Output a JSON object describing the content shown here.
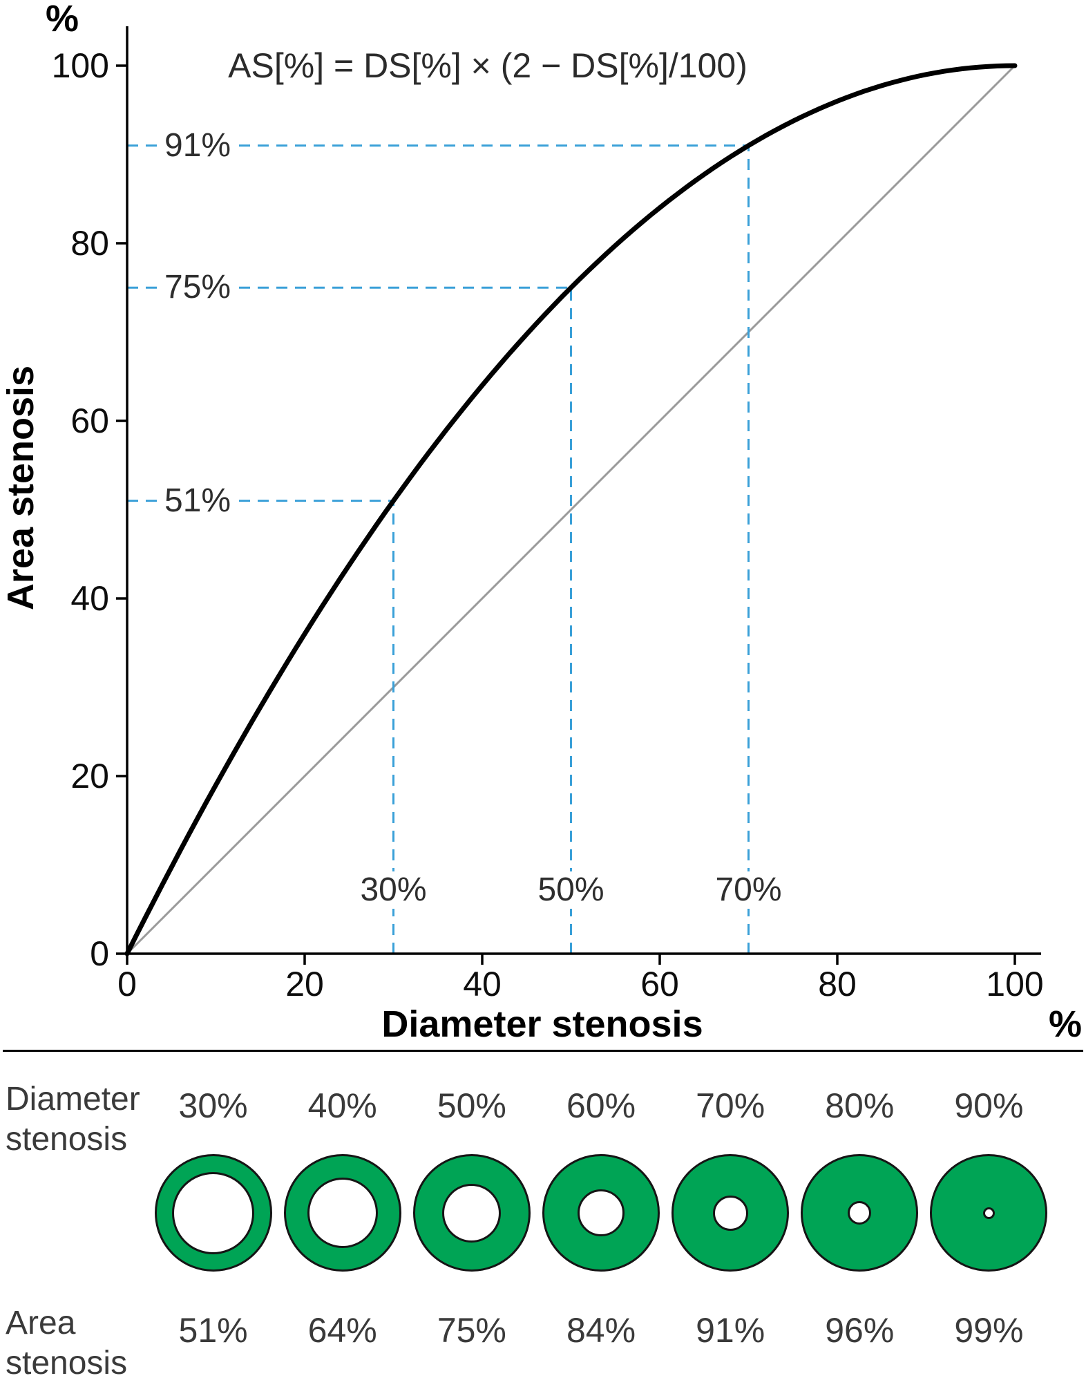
{
  "chart_data": {
    "type": "line",
    "title": "",
    "formula": "AS[%] = DS[%] × (2 − DS[%]/100)",
    "x_axis": {
      "title": "Diameter stenosis",
      "unit": "%",
      "ticks": [
        0,
        20,
        40,
        60,
        80,
        100
      ],
      "range": [
        0,
        100
      ]
    },
    "y_axis": {
      "title": "Area stenosis",
      "unit": "%",
      "ticks": [
        0,
        20,
        40,
        60,
        80,
        100
      ],
      "range": [
        0,
        100
      ]
    },
    "grid": false,
    "legend": false,
    "series": [
      {
        "name": "area-stenosis-curve",
        "color": "#000000",
        "width": 7,
        "expression": "ds * (2 - ds / 100)",
        "x": [
          0,
          10,
          20,
          30,
          40,
          50,
          60,
          70,
          80,
          90,
          100
        ],
        "y": [
          0,
          19,
          36,
          51,
          64,
          75,
          84,
          91,
          96,
          99,
          100
        ]
      },
      {
        "name": "identity-line",
        "color": "#9b9b9b",
        "width": 3,
        "x": [
          0,
          100
        ],
        "y": [
          0,
          100
        ]
      }
    ],
    "guides": {
      "color": "#3aa0d8",
      "points": [
        {
          "ds": 30,
          "as": 51,
          "ds_label": "30%",
          "as_label": "51%"
        },
        {
          "ds": 50,
          "as": 75,
          "ds_label": "50%",
          "as_label": "75%"
        },
        {
          "ds": 70,
          "as": 91,
          "ds_label": "70%",
          "as_label": "91%"
        }
      ]
    }
  },
  "bottom_table": {
    "row_labels": {
      "diameter": [
        "Diameter",
        "stenosis"
      ],
      "area": [
        "Area",
        "stenosis"
      ]
    },
    "diameter_values": [
      "30%",
      "40%",
      "50%",
      "60%",
      "70%",
      "80%",
      "90%"
    ],
    "area_values": [
      "51%",
      "64%",
      "75%",
      "84%",
      "91%",
      "96%",
      "99%"
    ],
    "donuts": [
      {
        "diameter_stenosis": 30,
        "area_stenosis": 51
      },
      {
        "diameter_stenosis": 40,
        "area_stenosis": 64
      },
      {
        "diameter_stenosis": 50,
        "area_stenosis": 75
      },
      {
        "diameter_stenosis": 60,
        "area_stenosis": 84
      },
      {
        "diameter_stenosis": 70,
        "area_stenosis": 91
      },
      {
        "diameter_stenosis": 80,
        "area_stenosis": 96
      },
      {
        "diameter_stenosis": 90,
        "area_stenosis": 99
      }
    ],
    "donut_fill_color": "#00a455"
  }
}
